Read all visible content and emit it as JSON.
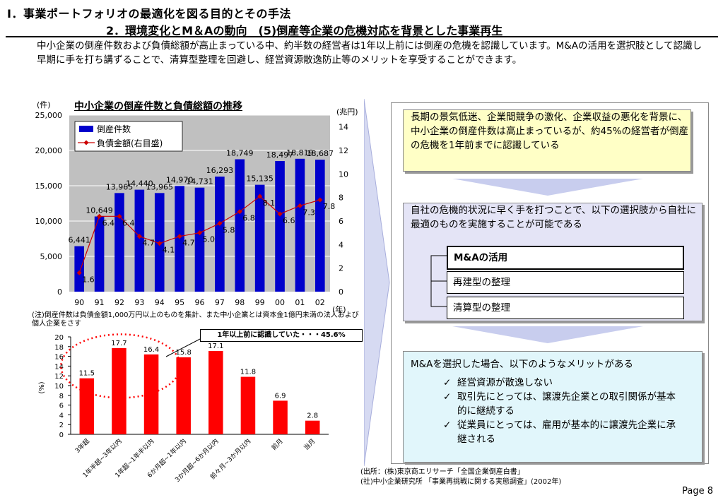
{
  "header": {
    "title1": "Ⅰ．事業ポートフォリオの最適化を図る目的とその手法",
    "title2": "2．環境変化とM＆Aの動向　(5)倒産等企業の危機対応を背景とした事業再生"
  },
  "intro": "中小企業の倒産件数および負債総額が高止まっている中、約半数の経営者は1年以上前には倒産の危機を認識しています。M&Aの活用を選択肢として認識し早期に手を打ち講ずることで、清算型整理を回避し、経営資源散逸防止等のメリットを享受することができます。",
  "chart1": {
    "title": "中小企業の倒産件数と負債総額の推移",
    "y_left_unit": "(件)",
    "y_right_unit": "(兆円)",
    "x_unit": "(年)",
    "legend_bar": "倒産件数",
    "legend_line": "負債金額(右目盛)"
  },
  "note1": "(注)倒産件数は負債金額1,000万円以上のものを集計、また中小企業とは資本金1億円未満の法人および個人企業をさす",
  "chart2": {
    "yaxis_label": "(%)",
    "callout": "1年以上前に認識していた・・・45.6%"
  },
  "chart_data": [
    {
      "type": "bar",
      "title": "中小企業の倒産件数と負債総額の推移",
      "categories": [
        "90",
        "91",
        "92",
        "93",
        "94",
        "95",
        "96",
        "97",
        "98",
        "99",
        "00",
        "01",
        "02"
      ],
      "series": [
        {
          "name": "倒産件数",
          "values": [
            6441,
            10649,
            13965,
            14440,
            13965,
            14970,
            14731,
            16293,
            18749,
            15135,
            18497,
            18819,
            18687
          ]
        },
        {
          "name": "負債金額(右目盛)",
          "values": [
            1.6,
            6.4,
            6.4,
            4.7,
            4.1,
            4.7,
            5.0,
            5.8,
            6.8,
            8.1,
            6.6,
            7.3,
            7.8
          ]
        }
      ],
      "bar_labels": [
        "6,441",
        "10,649",
        "13,965",
        "14,440",
        "13,965",
        "14,970",
        "14,731",
        "16,293",
        "18,749",
        "15,135",
        "18,497",
        "18,819",
        "18,687"
      ],
      "line_labels": [
        "1.6",
        "6.4",
        "6.4",
        "4.7",
        "4.1",
        "4.7",
        "5.0",
        "5.8",
        "6.8",
        "8.1",
        "6.6",
        "7.3",
        "7.8"
      ],
      "y_left_ticks": [
        "0",
        "5,000",
        "10,000",
        "15,000",
        "20,000",
        "25,000"
      ],
      "y_right_ticks": [
        "0",
        "2",
        "4",
        "6",
        "8",
        "10",
        "12",
        "14"
      ],
      "ylim_left": [
        0,
        25000
      ],
      "ylim_right": [
        0,
        15
      ],
      "legend": "top-left",
      "colors": {
        "bar": "#0000cc",
        "line": "#cc0000"
      }
    },
    {
      "type": "bar",
      "categories": [
        "3年超",
        "1年半超~3年以内",
        "1年超~1年半以内",
        "6か月超~1年以内",
        "3か月超~6か月以内",
        "前々月~3か月以内",
        "前月",
        "当月"
      ],
      "values": [
        11.5,
        17.7,
        16.4,
        15.8,
        17.1,
        11.8,
        6.9,
        2.8
      ],
      "value_labels": [
        "11.5",
        "17.7",
        "16.4",
        "15.8",
        "17.1",
        "11.8",
        "6.9",
        "2.8"
      ],
      "y_ticks": [
        "0",
        "2",
        "4",
        "6",
        "8",
        "10",
        "12",
        "14",
        "16",
        "18",
        "20"
      ],
      "ylim": [
        0,
        20
      ],
      "ylabel": "(%)",
      "colors": {
        "bar": "#ff0000",
        "highlight": "#ff0000"
      }
    }
  ],
  "arrow_panel": {
    "color": "#d6daf2"
  },
  "box1": {
    "text": "長期の景気低迷、企業間競争の激化、企業収益の悪化を背景に、中小企業の倒産件数は高止まっているが、約45%の経営者が倒産の危機を1年前までに認識している"
  },
  "box2": {
    "text": "自社の危機的状況に早く手を打つことで、以下の選択肢から自社に最適のものを実施することが可能である",
    "options": [
      "M&Aの活用",
      "再建型の整理",
      "清算型の整理"
    ]
  },
  "box3": {
    "text": "M&Aを選択した場合、以下のようなメリットがある",
    "merits": [
      "経営資源が散逸しない",
      "取引先にとっては、譲渡先企業との取引関係が基本的に継続する",
      "従業員にとっては、雇用が基本的に譲渡先企業に承継される"
    ]
  },
  "source": {
    "line1": "(出所：(株)東京商エリサーチ「全国企業倒産白書」",
    "line2": "(社)中小企業研究所 「事業再挑戦に関する実態調査」(2002年)"
  },
  "page": "Page 8"
}
